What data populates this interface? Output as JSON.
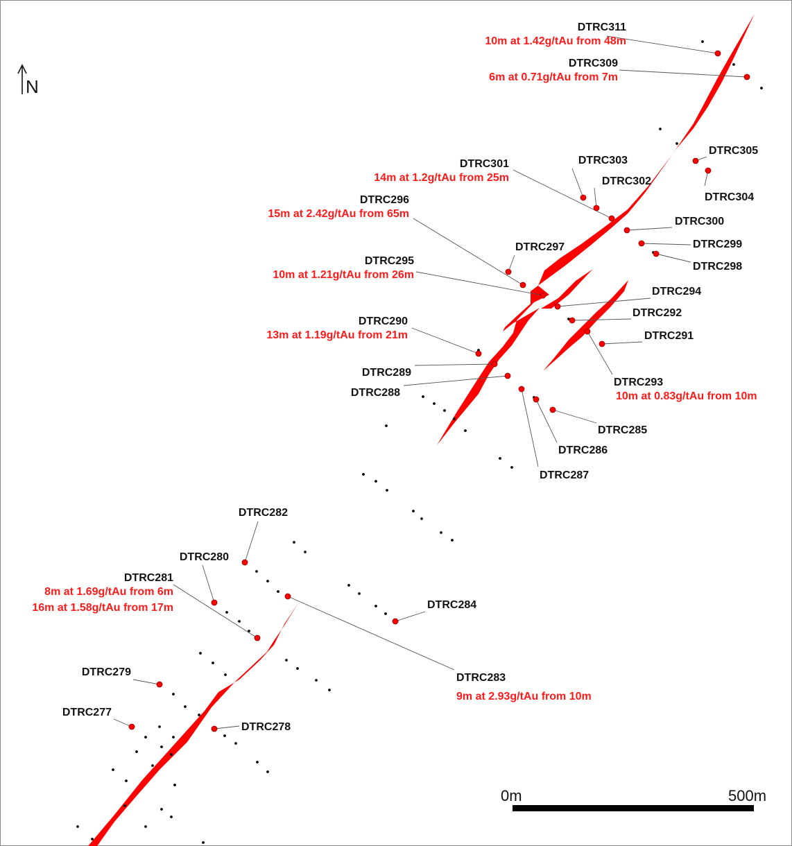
{
  "map": {
    "north_label": "N",
    "vein_color": "#ff0000",
    "collar_color": "#ff0000",
    "dot_color": "#000000",
    "scale": {
      "start_label": "0m",
      "end_label": "500m"
    }
  },
  "holes": [
    {
      "id": "DTRC311",
      "results": [
        "10m at 1.42g/tAu from 48m"
      ]
    },
    {
      "id": "DTRC309",
      "results": [
        "6m at 0.71g/tAu from 7m"
      ]
    },
    {
      "id": "DTRC305",
      "results": []
    },
    {
      "id": "DTRC304",
      "results": []
    },
    {
      "id": "DTRC303",
      "results": []
    },
    {
      "id": "DTRC302",
      "results": []
    },
    {
      "id": "DTRC301",
      "results": [
        "14m at 1.2g/tAu from 25m"
      ]
    },
    {
      "id": "DTRC300",
      "results": []
    },
    {
      "id": "DTRC299",
      "results": []
    },
    {
      "id": "DTRC298",
      "results": []
    },
    {
      "id": "DTRC297",
      "results": []
    },
    {
      "id": "DTRC296",
      "results": [
        "15m at 2.42g/tAu from 65m"
      ]
    },
    {
      "id": "DTRC295",
      "results": [
        "10m at 1.21g/tAu from 26m"
      ]
    },
    {
      "id": "DTRC294",
      "results": []
    },
    {
      "id": "DTRC292",
      "results": []
    },
    {
      "id": "DTRC291",
      "results": []
    },
    {
      "id": "DTRC293",
      "results": [
        "10m at 0.83g/tAu from 10m"
      ]
    },
    {
      "id": "DTRC290",
      "results": [
        "13m at 1.19g/tAu from 21m"
      ]
    },
    {
      "id": "DTRC289",
      "results": []
    },
    {
      "id": "DTRC288",
      "results": []
    },
    {
      "id": "DTRC285",
      "results": []
    },
    {
      "id": "DTRC286",
      "results": []
    },
    {
      "id": "DTRC287",
      "results": []
    },
    {
      "id": "DTRC282",
      "results": []
    },
    {
      "id": "DTRC280",
      "results": []
    },
    {
      "id": "DTRC281",
      "results": [
        "8m at 1.69g/tAu from 6m",
        "16m at 1.58g/tAu from 17m"
      ]
    },
    {
      "id": "DTRC284",
      "results": []
    },
    {
      "id": "DTRC283",
      "results": [
        "9m at 2.93g/tAu from 10m"
      ]
    },
    {
      "id": "DTRC279",
      "results": []
    },
    {
      "id": "DTRC277",
      "results": []
    },
    {
      "id": "DTRC278",
      "results": []
    }
  ]
}
